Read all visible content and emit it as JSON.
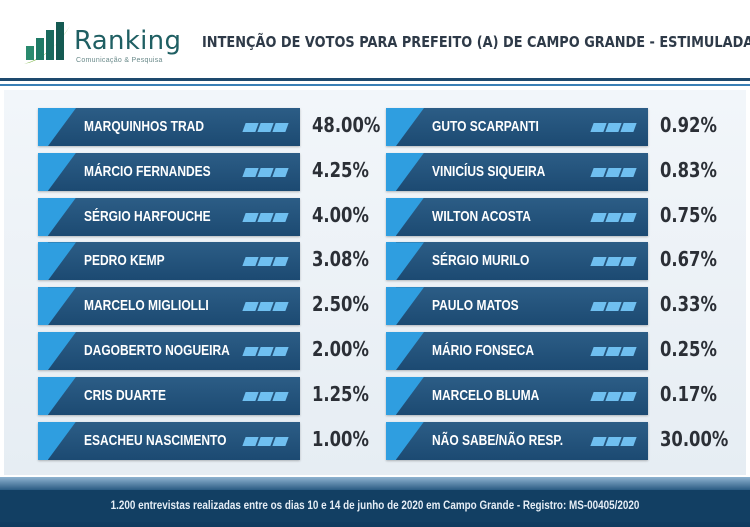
{
  "header": {
    "logo_name": "Ranking",
    "logo_tagline": "Comunicação & Pesquisa",
    "title": "INTENÇÃO DE VOTOS PARA PREFEITO (A) DE CAMPO GRANDE - ESTIMULADA"
  },
  "footer": {
    "text": "1.200 entrevistas realizadas entre os dias 10 e 14 de junho de 2020 em Campo Grande - Registro: MS-00405/2020"
  },
  "colors": {
    "bar": "#1c4a72",
    "accent": "#2f9ee0",
    "stripe": "#6fbff0",
    "title_text": "#2e3a48",
    "value_text": "#2b2f36"
  },
  "chart_data": {
    "type": "table",
    "title": "INTENÇÃO DE VOTOS PARA PREFEITO (A) DE CAMPO GRANDE - ESTIMULADA",
    "columns": [
      {
        "rows": [
          {
            "name": "MARQUINHOS TRAD",
            "value": 48.0,
            "label": "48.00%"
          },
          {
            "name": "MÁRCIO FERNANDES",
            "value": 4.25,
            "label": "4.25%"
          },
          {
            "name": "SÉRGIO HARFOUCHE",
            "value": 4.0,
            "label": "4.00%"
          },
          {
            "name": "PEDRO KEMP",
            "value": 3.08,
            "label": "3.08%"
          },
          {
            "name": "MARCELO MIGLIOLLI",
            "value": 2.5,
            "label": "2.50%"
          },
          {
            "name": "DAGOBERTO NOGUEIRA",
            "value": 2.0,
            "label": "2.00%"
          },
          {
            "name": "CRIS DUARTE",
            "value": 1.25,
            "label": "1.25%"
          },
          {
            "name": "ESACHEU NASCIMENTO",
            "value": 1.0,
            "label": "1.00%"
          }
        ]
      },
      {
        "rows": [
          {
            "name": "GUTO SCARPANTI",
            "value": 0.92,
            "label": "0.92%"
          },
          {
            "name": "VINICÍUS SIQUEIRA",
            "value": 0.83,
            "label": "0.83%"
          },
          {
            "name": "WILTON ACOSTA",
            "value": 0.75,
            "label": "0.75%"
          },
          {
            "name": "SÉRGIO MURILO",
            "value": 0.67,
            "label": "0.67%"
          },
          {
            "name": "PAULO MATOS",
            "value": 0.33,
            "label": "0.33%"
          },
          {
            "name": "MÁRIO FONSECA",
            "value": 0.25,
            "label": "0.25%"
          },
          {
            "name": "MARCELO BLUMA",
            "value": 0.17,
            "label": "0.17%"
          },
          {
            "name": "NÃO SABE/NÃO RESP.",
            "value": 30.0,
            "label": "30.00%"
          }
        ]
      }
    ]
  }
}
